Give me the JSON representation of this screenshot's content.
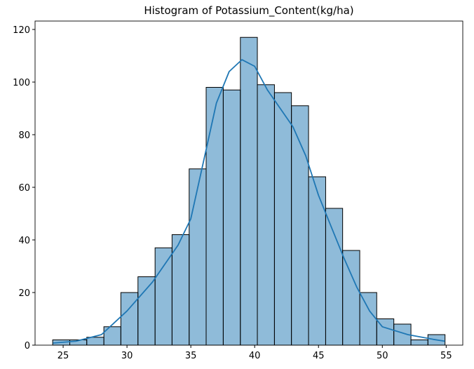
{
  "chart_data": {
    "type": "histogram",
    "title": "Histogram of Potassium_Content(kg/ha)",
    "bins": [
      24.18,
      25.52,
      26.85,
      28.19,
      29.52,
      30.86,
      32.2,
      33.53,
      34.87,
      36.2,
      37.54,
      38.88,
      40.21,
      41.55,
      42.88,
      44.22,
      45.56,
      46.89,
      48.23,
      49.56,
      50.9,
      52.24,
      53.57,
      54.91
    ],
    "values": [
      2,
      2,
      3,
      7,
      20,
      26,
      37,
      42,
      67,
      98,
      97,
      117,
      99,
      96,
      91,
      64,
      52,
      36,
      20,
      10,
      8,
      2,
      4
    ],
    "color": "#1f77b4",
    "kde": {
      "x": [
        24.2,
        26,
        28,
        30,
        32,
        34,
        35,
        36,
        37,
        38,
        39,
        40,
        41,
        42,
        43,
        44,
        45,
        46,
        47,
        48,
        49,
        50,
        52,
        54,
        54.9
      ],
      "y": [
        0.8,
        1.5,
        4,
        13,
        24,
        38,
        48,
        70,
        92,
        104,
        108.5,
        106,
        97,
        90,
        83,
        72,
        57,
        45,
        33,
        22,
        13,
        7,
        4,
        2.2,
        1.5
      ],
      "color": "#1f77b4"
    },
    "xlim": [
      22.8,
      56.3
    ],
    "xticks": [
      25,
      30,
      35,
      40,
      45,
      50,
      55
    ],
    "ylim": [
      0,
      123.2
    ],
    "yticks": [
      0,
      20,
      40,
      60,
      80,
      100,
      120
    ]
  }
}
